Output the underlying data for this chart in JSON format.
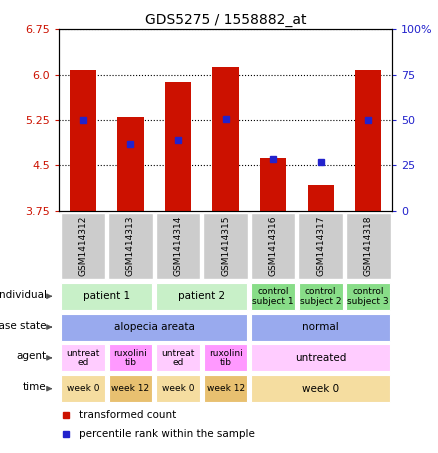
{
  "title": "GDS5275 / 1558882_at",
  "samples": [
    "GSM1414312",
    "GSM1414313",
    "GSM1414314",
    "GSM1414315",
    "GSM1414316",
    "GSM1414317",
    "GSM1414318"
  ],
  "red_values": [
    6.08,
    5.3,
    5.88,
    6.12,
    4.62,
    4.18,
    6.08
  ],
  "blue_values": [
    5.25,
    4.85,
    4.92,
    5.27,
    4.6,
    4.55,
    5.25
  ],
  "y_min": 3.75,
  "y_max": 6.75,
  "y_ticks_red": [
    3.75,
    4.5,
    5.25,
    6.0,
    6.75
  ],
  "y_ticks_blue": [
    0,
    25,
    50,
    75,
    100
  ],
  "annotation_rows": {
    "individual": {
      "label": "individual",
      "groups": [
        {
          "cols": [
            0,
            1
          ],
          "text": "patient 1",
          "color": "#c8f0c8"
        },
        {
          "cols": [
            2,
            3
          ],
          "text": "patient 2",
          "color": "#c8f0c8"
        },
        {
          "cols": [
            4
          ],
          "text": "control\nsubject 1",
          "color": "#88dd88"
        },
        {
          "cols": [
            5
          ],
          "text": "control\nsubject 2",
          "color": "#88dd88"
        },
        {
          "cols": [
            6
          ],
          "text": "control\nsubject 3",
          "color": "#88dd88"
        }
      ]
    },
    "disease_state": {
      "label": "disease state",
      "groups": [
        {
          "cols": [
            0,
            1,
            2,
            3
          ],
          "text": "alopecia areata",
          "color": "#99aaee"
        },
        {
          "cols": [
            4,
            5,
            6
          ],
          "text": "normal",
          "color": "#99aaee"
        }
      ]
    },
    "agent": {
      "label": "agent",
      "groups": [
        {
          "cols": [
            0
          ],
          "text": "untreat\ned",
          "color": "#ffccff"
        },
        {
          "cols": [
            1
          ],
          "text": "ruxolini\ntib",
          "color": "#ff99ff"
        },
        {
          "cols": [
            2
          ],
          "text": "untreat\ned",
          "color": "#ffccff"
        },
        {
          "cols": [
            3
          ],
          "text": "ruxolini\ntib",
          "color": "#ff99ff"
        },
        {
          "cols": [
            4,
            5,
            6
          ],
          "text": "untreated",
          "color": "#ffccff"
        }
      ]
    },
    "time": {
      "label": "time",
      "groups": [
        {
          "cols": [
            0
          ],
          "text": "week 0",
          "color": "#f5dda0"
        },
        {
          "cols": [
            1
          ],
          "text": "week 12",
          "color": "#e8c070"
        },
        {
          "cols": [
            2
          ],
          "text": "week 0",
          "color": "#f5dda0"
        },
        {
          "cols": [
            3
          ],
          "text": "week 12",
          "color": "#e8c070"
        },
        {
          "cols": [
            4,
            5,
            6
          ],
          "text": "week 0",
          "color": "#f5dda0"
        }
      ]
    }
  },
  "row_order": [
    "individual",
    "disease_state",
    "agent",
    "time"
  ],
  "row_labels": [
    "individual",
    "disease state",
    "agent",
    "time"
  ],
  "bar_color": "#cc1100",
  "dot_color": "#2222cc",
  "gsm_bg": "#cccccc",
  "plot_bg": "#ffffff"
}
